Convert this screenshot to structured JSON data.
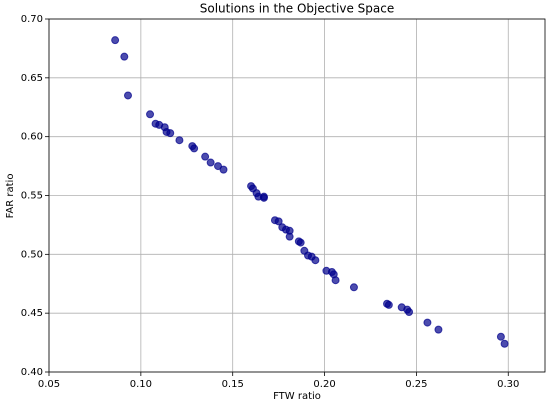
{
  "chart_data": {
    "type": "scatter",
    "title": "Solutions in the Objective Space",
    "x_label": "FTW ratio",
    "y_label": "FAR ratio",
    "color": "#00008b",
    "grid": true,
    "xlim": [
      0.05,
      0.32
    ],
    "ylim": [
      0.4,
      0.7
    ],
    "xticks": [
      0.05,
      {
        "value": 0.1,
        "label": "0.10"
      },
      0.15,
      {
        "value": 0.2,
        "label": "0.20"
      },
      0.25,
      {
        "value": 0.3,
        "label": "0.30"
      }
    ],
    "yticks": [
      {
        "value": 0.4,
        "label": "0.40"
      },
      0.45,
      {
        "value": 0.5,
        "label": "0.50"
      },
      0.55,
      {
        "value": 0.6,
        "label": "0.60"
      },
      0.65,
      {
        "value": 0.7,
        "label": "0.70"
      }
    ],
    "x": [
      0.086,
      0.091,
      0.093,
      0.105,
      0.108,
      0.11,
      0.113,
      0.114,
      0.116,
      0.121,
      0.128,
      0.129,
      0.135,
      0.138,
      0.142,
      0.145,
      0.16,
      0.161,
      0.163,
      0.164,
      0.167,
      0.167,
      0.173,
      0.175,
      0.177,
      0.179,
      0.181,
      0.181,
      0.186,
      0.187,
      0.189,
      0.191,
      0.193,
      0.195,
      0.201,
      0.204,
      0.205,
      0.206,
      0.216,
      0.234,
      0.235,
      0.242,
      0.245,
      0.246,
      0.256,
      0.262,
      0.296,
      0.298
    ],
    "values": [
      0.682,
      0.668,
      0.635,
      0.619,
      0.611,
      0.61,
      0.608,
      0.604,
      0.603,
      0.597,
      0.592,
      0.59,
      0.583,
      0.578,
      0.575,
      0.572,
      0.558,
      0.556,
      0.552,
      0.549,
      0.549,
      0.548,
      0.529,
      0.528,
      0.523,
      0.521,
      0.52,
      0.515,
      0.511,
      0.51,
      0.503,
      0.499,
      0.498,
      0.495,
      0.486,
      0.485,
      0.483,
      0.478,
      0.472,
      0.458,
      0.457,
      0.455,
      0.453,
      0.451,
      0.442,
      0.436,
      0.43,
      0.424
    ]
  }
}
